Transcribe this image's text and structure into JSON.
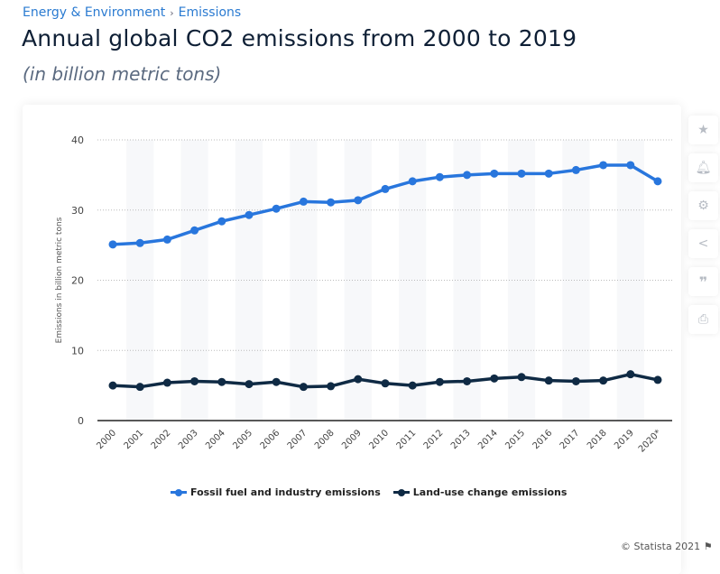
{
  "breadcrumb": {
    "items": [
      "Energy & Environment",
      "Emissions"
    ],
    "separator": "›"
  },
  "header": {
    "title": "Annual global CO2 emissions from 2000 to 2019",
    "subtitle": "(in billion metric tons)"
  },
  "sidebar": {
    "icons": [
      "star-icon",
      "bell-icon",
      "gear-icon",
      "share-icon",
      "quote-icon",
      "print-icon"
    ]
  },
  "footer": {
    "copyright": "© Statista 2021"
  },
  "chart_data": {
    "type": "line",
    "title": "",
    "xlabel": "",
    "ylabel": "Emissions in billion metric tons",
    "ylim": [
      0,
      40
    ],
    "yticks": [
      0,
      10,
      20,
      30,
      40
    ],
    "grid": true,
    "legend_position": "bottom",
    "categories": [
      "2000",
      "2001",
      "2002",
      "2003",
      "2004",
      "2005",
      "2006",
      "2007",
      "2008",
      "2009",
      "2010",
      "2011",
      "2012",
      "2013",
      "2014",
      "2015",
      "2016",
      "2017",
      "2018",
      "2019",
      "2020*"
    ],
    "series": [
      {
        "name": "Fossil fuel and industry emissions",
        "color": "#2876dd",
        "values": [
          25.1,
          25.3,
          25.8,
          27.1,
          28.4,
          29.3,
          30.2,
          31.2,
          31.1,
          31.4,
          33.0,
          34.1,
          34.7,
          35.0,
          35.2,
          35.2,
          35.2,
          35.7,
          36.4,
          36.4,
          34.1
        ]
      },
      {
        "name": "Land-use change emissions",
        "color": "#0f2a44",
        "values": [
          5.0,
          4.8,
          5.4,
          5.6,
          5.5,
          5.2,
          5.5,
          4.8,
          4.9,
          5.9,
          5.3,
          5.0,
          5.5,
          5.6,
          6.0,
          6.2,
          5.7,
          5.6,
          5.7,
          6.6,
          5.8
        ]
      }
    ]
  }
}
